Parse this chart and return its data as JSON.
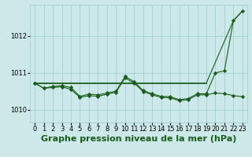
{
  "background_color": "#cce8e8",
  "grid_color": "#99cccc",
  "line_color": "#1a5c1a",
  "marker_color": "#1a5c1a",
  "title": "Graphe pression niveau de la mer (hPa)",
  "xlim": [
    -0.5,
    23.5
  ],
  "ylim": [
    1009.65,
    1012.85
  ],
  "yticks": [
    1010,
    1011,
    1012
  ],
  "xticks": [
    0,
    1,
    2,
    3,
    4,
    5,
    6,
    7,
    8,
    9,
    10,
    11,
    12,
    13,
    14,
    15,
    16,
    17,
    18,
    19,
    20,
    21,
    22,
    23
  ],
  "title_fontsize": 8,
  "tick_fontsize": 6,
  "line1_x": [
    0,
    1,
    2,
    3,
    4,
    5,
    6,
    7,
    8,
    9,
    10,
    11,
    12,
    13,
    14,
    15,
    16,
    17,
    18,
    19
  ],
  "line1_y": [
    1010.72,
    1010.72,
    1010.72,
    1010.72,
    1010.72,
    1010.72,
    1010.72,
    1010.72,
    1010.72,
    1010.72,
    1010.72,
    1010.72,
    1010.72,
    1010.72,
    1010.72,
    1010.72,
    1010.72,
    1010.72,
    1010.72,
    1010.72
  ],
  "line2_x": [
    0,
    1,
    2,
    3,
    4,
    5,
    6,
    7,
    8,
    9,
    10,
    11,
    12,
    13,
    14,
    15,
    16,
    17,
    18,
    19,
    20,
    21,
    22,
    23
  ],
  "line2_y": [
    1010.72,
    1010.58,
    1010.63,
    1010.65,
    1010.6,
    1010.36,
    1010.42,
    1010.4,
    1010.45,
    1010.5,
    1010.9,
    1010.76,
    1010.52,
    1010.43,
    1010.36,
    1010.35,
    1010.27,
    1010.3,
    1010.43,
    1010.43,
    1011.0,
    1011.05,
    1012.42,
    1012.68
  ],
  "line3_x": [
    0,
    1,
    2,
    3,
    4,
    5,
    6,
    7,
    8,
    9,
    10,
    11,
    12,
    13,
    14,
    15,
    16,
    17,
    18,
    19,
    20,
    21,
    22,
    23
  ],
  "line3_y": [
    1010.72,
    1010.58,
    1010.6,
    1010.62,
    1010.55,
    1010.33,
    1010.38,
    1010.36,
    1010.42,
    1010.47,
    1010.86,
    1010.72,
    1010.49,
    1010.4,
    1010.33,
    1010.32,
    1010.24,
    1010.27,
    1010.4,
    1010.4,
    1010.45,
    1010.43,
    1010.38,
    1010.35
  ],
  "line4_x": [
    0,
    19,
    22,
    23
  ],
  "line4_y": [
    1010.72,
    1010.72,
    1012.42,
    1012.68
  ]
}
